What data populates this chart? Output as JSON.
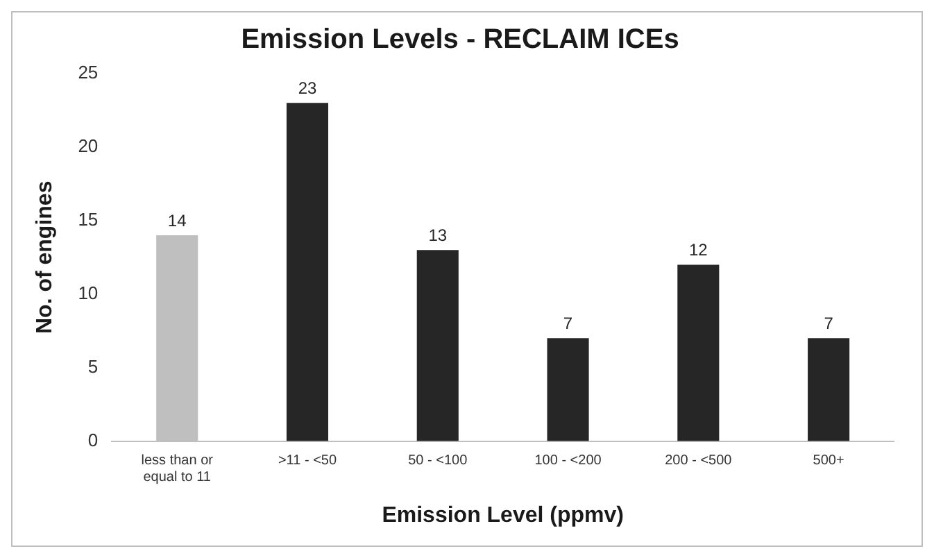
{
  "chart_data": {
    "type": "bar",
    "title": "Emission Levels - RECLAIM ICEs",
    "xlabel": "Emission Level (ppmv)",
    "ylabel": "No. of engines",
    "categories": [
      "less than or equal to 11",
      ">11 - <50",
      "50 - <100",
      "100 - <200",
      "200 - <500",
      "500+"
    ],
    "values": [
      14,
      23,
      13,
      7,
      12,
      7
    ],
    "colors": [
      "#bfbfbf",
      "#262626",
      "#262626",
      "#262626",
      "#262626",
      "#262626"
    ],
    "ylim": [
      0,
      25
    ],
    "yticks": [
      0,
      5,
      10,
      15,
      20,
      25
    ],
    "grid": false,
    "data_labels": true
  }
}
